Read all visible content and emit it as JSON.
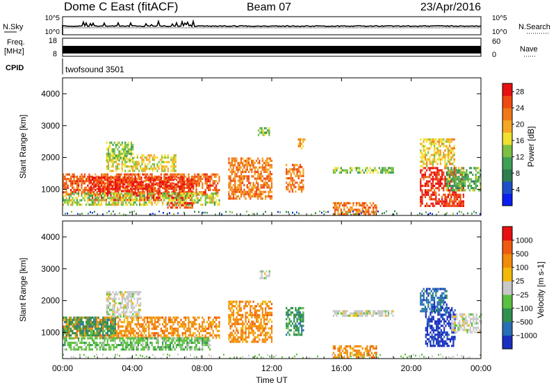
{
  "header": {
    "station": "Dome C East (fitACF)",
    "beam": "Beam 07",
    "date": "23/Apr/2016"
  },
  "noise_panel": {
    "left_label": "N.Sky",
    "right_label": "N.Search",
    "left_ticks": [
      "10^5",
      "10^0"
    ],
    "right_ticks": [
      "10^5",
      "10^0"
    ]
  },
  "freq_panel": {
    "left_label_1": "Freq.",
    "left_label_2": "[MHz]",
    "right_label": "Nave",
    "left_ticks": [
      "18",
      "8"
    ],
    "right_ticks": [
      "60",
      "0"
    ]
  },
  "cpid_panel": {
    "label": "CPID",
    "value": "twofsound 3501"
  },
  "colors": {
    "power": [
      "#0a1ef0",
      "#1e4fc8",
      "#2e7d4f",
      "#3fa055",
      "#7cc043",
      "#f0e030",
      "#f5a623",
      "#f07818",
      "#f04a10",
      "#e81010"
    ],
    "velocity": [
      "#1a2fbf",
      "#2a6fb5",
      "#2f8f4f",
      "#5cc040",
      "#c8c8c8",
      "#f3b90a",
      "#f28a0a",
      "#ef5a10",
      "#e81010"
    ]
  },
  "chart_data": [
    {
      "type": "heatmap",
      "quantity": "Power",
      "xlabel": "Time UT",
      "ylabel": "Slant Range [km]",
      "colorbar_label": "Power [dB]",
      "colorbar_ticks": [
        "4",
        "8",
        "12",
        "16",
        "20",
        "24",
        "28"
      ],
      "value_range": [
        0,
        30
      ],
      "x_ticks": [
        "00:00",
        "04:00",
        "08:00",
        "12:00",
        "16:00",
        "20:00",
        "00:00"
      ],
      "xlim_hours": [
        0,
        24
      ],
      "y_ticks": [
        "1000",
        "2000",
        "3000",
        "4000"
      ],
      "ylim": [
        180,
        4500
      ],
      "regions": [
        {
          "t": [
            0.0,
            9.0
          ],
          "r": [
            850,
            1500
          ],
          "value": 24
        },
        {
          "t": [
            1.5,
            7.5
          ],
          "r": [
            700,
            1400
          ],
          "value": 27
        },
        {
          "t": [
            0.0,
            9.0
          ],
          "r": [
            500,
            900
          ],
          "value": 15
        },
        {
          "t": [
            2.5,
            6.5
          ],
          "r": [
            1600,
            2100
          ],
          "value": 17
        },
        {
          "t": [
            6.0,
            7.5
          ],
          "r": [
            400,
            600
          ],
          "value": 25
        },
        {
          "t": [
            2.5,
            4.0
          ],
          "r": [
            1900,
            2500
          ],
          "value": 14
        },
        {
          "t": [
            9.5,
            12.0
          ],
          "r": [
            700,
            2000
          ],
          "value": 22
        },
        {
          "t": [
            11.2,
            11.9
          ],
          "r": [
            2700,
            2950
          ],
          "value": 12
        },
        {
          "t": [
            12.8,
            13.8
          ],
          "r": [
            900,
            1800
          ],
          "value": 23
        },
        {
          "t": [
            13.5,
            13.9
          ],
          "r": [
            2300,
            2600
          ],
          "value": 20
        },
        {
          "t": [
            15.5,
            19.0
          ],
          "r": [
            1500,
            1700
          ],
          "value": 13
        },
        {
          "t": [
            15.5,
            18.0
          ],
          "r": [
            250,
            600
          ],
          "value": 23
        },
        {
          "t": [
            20.5,
            23.0
          ],
          "r": [
            500,
            1700
          ],
          "value": 27
        },
        {
          "t": [
            20.5,
            22.5
          ],
          "r": [
            1700,
            2600
          ],
          "value": 18
        },
        {
          "t": [
            22.0,
            24.0
          ],
          "r": [
            1000,
            1700
          ],
          "value": 12
        }
      ]
    },
    {
      "type": "heatmap",
      "quantity": "Velocity",
      "xlabel": "Time UT",
      "ylabel": "Slant Range [km]",
      "colorbar_label": "Velocity [m s-1]",
      "colorbar_ticks": [
        "1000",
        "500",
        "100",
        "25",
        "−25",
        "−100",
        "−500",
        "−1000"
      ],
      "value_classes": 9,
      "x_ticks": [
        "00:00",
        "04:00",
        "08:00",
        "12:00",
        "16:00",
        "20:00",
        "00:00"
      ],
      "xlim_hours": [
        0,
        24
      ],
      "y_ticks": [
        "1000",
        "2000",
        "3000",
        "4000"
      ],
      "ylim": [
        180,
        4500
      ],
      "regions": [
        {
          "t": [
            0.0,
            9.0
          ],
          "r": [
            850,
            1500
          ],
          "value": 6
        },
        {
          "t": [
            0.0,
            3.0
          ],
          "r": [
            900,
            1500
          ],
          "value": 2
        },
        {
          "t": [
            2.5,
            4.5
          ],
          "r": [
            1500,
            2300
          ],
          "value": 4
        },
        {
          "t": [
            0.0,
            8.5
          ],
          "r": [
            500,
            850
          ],
          "value": 3
        },
        {
          "t": [
            9.5,
            12.0
          ],
          "r": [
            700,
            2000
          ],
          "value": 6
        },
        {
          "t": [
            11.3,
            11.9
          ],
          "r": [
            2700,
            2950
          ],
          "value": 4
        },
        {
          "t": [
            12.8,
            13.8
          ],
          "r": [
            900,
            1800
          ],
          "value": 2
        },
        {
          "t": [
            15.5,
            19.0
          ],
          "r": [
            1500,
            1700
          ],
          "value": 4
        },
        {
          "t": [
            15.5,
            18.0
          ],
          "r": [
            250,
            600
          ],
          "value": 6
        },
        {
          "t": [
            20.8,
            22.5
          ],
          "r": [
            600,
            1800
          ],
          "value": 0
        },
        {
          "t": [
            22.3,
            24.0
          ],
          "r": [
            1000,
            1600
          ],
          "value": 4
        },
        {
          "t": [
            20.5,
            22.0
          ],
          "r": [
            1700,
            2400
          ],
          "value": 1
        }
      ]
    }
  ]
}
